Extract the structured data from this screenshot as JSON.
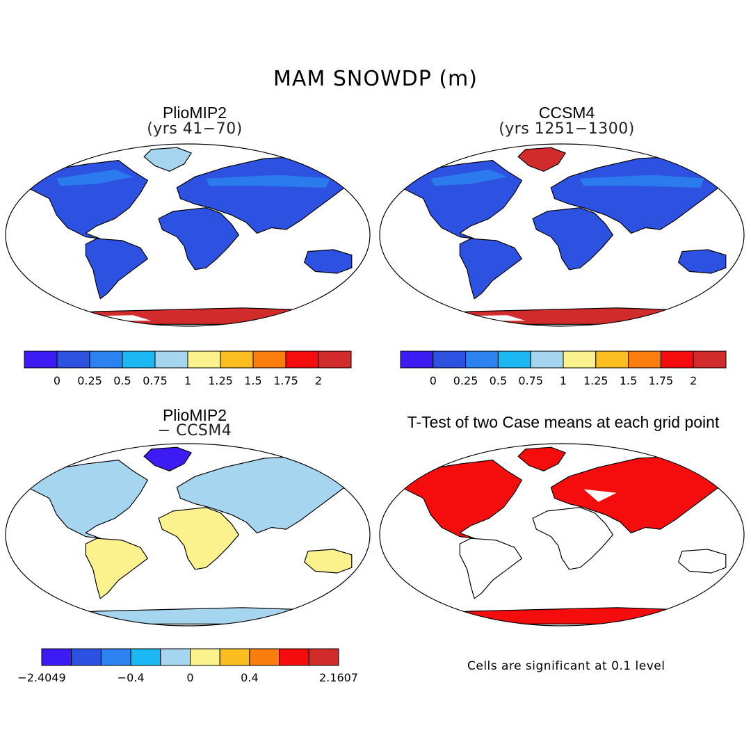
{
  "title": "MAM SNOWDP (m)",
  "panels": [
    {
      "id": "p1",
      "title": "PlioMIP2",
      "subtitle": "(yrs 41−70)",
      "kind": "field",
      "antarctica_variant": "pliomip2",
      "greenland_red": false
    },
    {
      "id": "p2",
      "title": "CCSM4",
      "subtitle": "(yrs 1251−1300)",
      "kind": "field",
      "antarctica_variant": "ccsm4",
      "greenland_red": true
    },
    {
      "id": "p3",
      "title": "PlioMIP2",
      "subtitle": "− CCSM4",
      "kind": "difference"
    },
    {
      "id": "p4",
      "title": "T-Test of two Case means at each grid point",
      "subtitle": "",
      "kind": "ttest"
    }
  ],
  "colorbars": [
    {
      "id": "cb1",
      "colors": [
        "#3d1bf5",
        "#2d51e0",
        "#2c82f1",
        "#1bb8f3",
        "#a6d5f0",
        "#fbf28e",
        "#fbbd1f",
        "#fb7d0e",
        "#f50d0d",
        "#d12b2b"
      ],
      "labels": [
        "0",
        "0.25",
        "0.5",
        "0.75",
        "1",
        "1.25",
        "1.5",
        "1.75",
        "2"
      ]
    },
    {
      "id": "cb2",
      "colors": [
        "#3d1bf5",
        "#2d51e0",
        "#2c82f1",
        "#1bb8f3",
        "#a6d5f0",
        "#fbf28e",
        "#fbbd1f",
        "#fb7d0e",
        "#f50d0d",
        "#d12b2b"
      ],
      "labels": [
        "0",
        "0.25",
        "0.5",
        "0.75",
        "1",
        "1.25",
        "1.5",
        "1.75",
        "2"
      ]
    },
    {
      "id": "cb3",
      "colors": [
        "#3d1bf5",
        "#2d51e0",
        "#2c82f1",
        "#1bb8f3",
        "#a6d5f0",
        "#fbf28e",
        "#fbbd1f",
        "#fb7d0e",
        "#f50d0d",
        "#d12b2b"
      ],
      "labels": [
        "−2.4049",
        "−0.4",
        "0",
        "0.4",
        "2.1607"
      ]
    }
  ],
  "footnote": "Cells are significant at 0.1 level",
  "colors": {
    "land_snow_low": "#2d51e0",
    "diff_positive": "#fbf28e",
    "diff_mid": "#a6d5f0",
    "significant": "#f50d0d",
    "ice_high": "#d12b2b"
  }
}
